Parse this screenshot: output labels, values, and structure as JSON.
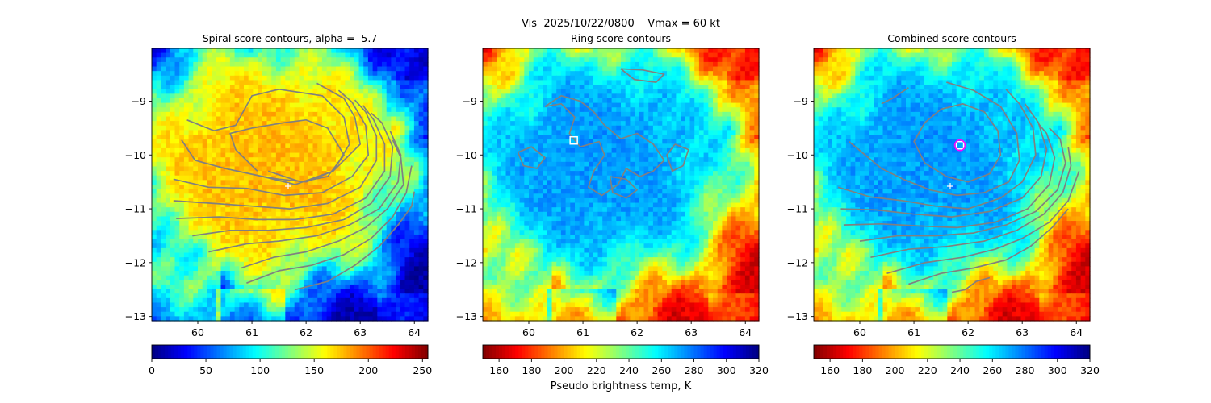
{
  "figure": {
    "suptitle": "Vis  2025/10/22/0800    Vmax = 60 kt",
    "colorbar_label": "Pseudo brightness temp, K"
  },
  "chart_data": [
    {
      "type": "heatmap",
      "title": "Spiral score contours, alpha =  5.7",
      "xlim": [
        59.15,
        64.25
      ],
      "ylim": [
        -13.08,
        -8.02
      ],
      "xticks": [
        60,
        61,
        62,
        63,
        64
      ],
      "yticks": [
        -9,
        -10,
        -11,
        -12,
        -13
      ],
      "grid": false,
      "colormap": "jet",
      "colorbar": {
        "ticks": [
          0,
          50,
          100,
          150,
          200,
          250
        ],
        "range": [
          0,
          255
        ],
        "reversed": false
      },
      "markers": [
        {
          "type": "plus",
          "x": 61.67,
          "y": -10.58,
          "color": "#ffffff"
        }
      ],
      "contours": [
        [
          [
            61.1,
            -10.3
          ],
          [
            60.7,
            -9.9
          ],
          [
            60.6,
            -9.6
          ],
          [
            61.0,
            -9.5
          ],
          [
            61.6,
            -9.4
          ],
          [
            62.0,
            -9.35
          ],
          [
            62.4,
            -9.5
          ],
          [
            62.7,
            -10.0
          ],
          [
            62.4,
            -10.4
          ],
          [
            61.9,
            -10.5
          ],
          [
            61.3,
            -10.3
          ]
        ],
        [
          [
            59.8,
            -9.35
          ],
          [
            60.3,
            -9.55
          ],
          [
            60.7,
            -9.45
          ],
          [
            61.0,
            -8.9
          ],
          [
            61.5,
            -8.78
          ],
          [
            62.3,
            -8.9
          ],
          [
            62.7,
            -9.3
          ],
          [
            62.8,
            -9.8
          ],
          [
            62.5,
            -10.3
          ],
          [
            62.0,
            -10.5
          ],
          [
            61.5,
            -10.45
          ],
          [
            61.2,
            -10.4
          ]
        ],
        [
          [
            59.7,
            -9.72
          ],
          [
            59.95,
            -10.1
          ],
          [
            60.5,
            -10.25
          ],
          [
            61.2,
            -10.4
          ],
          [
            61.8,
            -10.55
          ],
          [
            62.5,
            -10.3
          ],
          [
            63.0,
            -9.8
          ],
          [
            62.9,
            -9.3
          ],
          [
            62.7,
            -8.95
          ],
          [
            62.2,
            -8.67
          ]
        ],
        [
          [
            59.55,
            -10.45
          ],
          [
            60.2,
            -10.6
          ],
          [
            60.9,
            -10.62
          ],
          [
            61.6,
            -10.75
          ],
          [
            62.3,
            -10.7
          ],
          [
            62.85,
            -10.4
          ],
          [
            63.15,
            -10.0
          ],
          [
            63.1,
            -9.45
          ],
          [
            62.85,
            -9.02
          ],
          [
            62.6,
            -8.8
          ]
        ],
        [
          [
            59.55,
            -10.85
          ],
          [
            60.3,
            -10.9
          ],
          [
            61.0,
            -10.95
          ],
          [
            61.7,
            -11.0
          ],
          [
            62.4,
            -10.9
          ],
          [
            63.0,
            -10.6
          ],
          [
            63.3,
            -10.1
          ],
          [
            63.3,
            -9.65
          ],
          [
            63.1,
            -9.2
          ],
          [
            62.9,
            -8.98
          ]
        ],
        [
          [
            59.6,
            -11.18
          ],
          [
            60.4,
            -11.15
          ],
          [
            61.1,
            -11.2
          ],
          [
            61.8,
            -11.2
          ],
          [
            62.5,
            -11.1
          ],
          [
            63.1,
            -10.8
          ],
          [
            63.45,
            -10.3
          ],
          [
            63.45,
            -9.8
          ],
          [
            63.25,
            -9.35
          ],
          [
            63.05,
            -9.08
          ]
        ],
        [
          [
            59.9,
            -11.5
          ],
          [
            60.6,
            -11.4
          ],
          [
            61.3,
            -11.4
          ],
          [
            62.0,
            -11.35
          ],
          [
            62.7,
            -11.2
          ],
          [
            63.2,
            -10.9
          ],
          [
            63.55,
            -10.4
          ],
          [
            63.6,
            -9.85
          ],
          [
            63.4,
            -9.4
          ],
          [
            63.2,
            -9.22
          ]
        ],
        [
          [
            60.2,
            -11.8
          ],
          [
            60.9,
            -11.65
          ],
          [
            61.5,
            -11.6
          ],
          [
            62.2,
            -11.5
          ],
          [
            62.8,
            -11.3
          ],
          [
            63.35,
            -11.0
          ],
          [
            63.7,
            -10.5
          ],
          [
            63.75,
            -10.0
          ],
          [
            63.55,
            -9.55
          ]
        ],
        [
          [
            60.8,
            -12.1
          ],
          [
            61.4,
            -11.9
          ],
          [
            62.0,
            -11.8
          ],
          [
            62.6,
            -11.6
          ],
          [
            63.1,
            -11.35
          ],
          [
            63.5,
            -11.0
          ],
          [
            63.8,
            -10.55
          ],
          [
            63.75,
            -10.05
          ],
          [
            63.6,
            -9.72
          ]
        ],
        [
          [
            60.9,
            -12.38
          ],
          [
            61.5,
            -12.15
          ],
          [
            62.1,
            -12.05
          ],
          [
            62.7,
            -11.85
          ],
          [
            63.2,
            -11.55
          ],
          [
            63.6,
            -11.15
          ],
          [
            63.85,
            -10.7
          ],
          [
            63.95,
            -10.2
          ]
        ],
        [
          [
            61.8,
            -12.5
          ],
          [
            62.4,
            -12.35
          ],
          [
            62.9,
            -12.05
          ],
          [
            63.35,
            -11.7
          ],
          [
            63.7,
            -11.3
          ],
          [
            63.95,
            -10.95
          ],
          [
            64.0,
            -10.68
          ]
        ]
      ]
    },
    {
      "type": "heatmap",
      "title": "Ring score contours",
      "xlim": [
        59.15,
        64.25
      ],
      "ylim": [
        -13.08,
        -8.02
      ],
      "xticks": [
        60,
        61,
        62,
        63,
        64
      ],
      "yticks": [
        -9,
        -10,
        -11,
        -12,
        -13
      ],
      "grid": false,
      "colormap": "jet_r",
      "colorbar": {
        "ticks": [
          160,
          180,
          200,
          220,
          240,
          260,
          280,
          300,
          320
        ],
        "range": [
          150,
          320
        ],
        "reversed": true
      },
      "markers": [
        {
          "type": "square",
          "x": 60.83,
          "y": -9.73,
          "color": "#ffffff"
        }
      ],
      "contours": [
        [
          [
            60.3,
            -9.1
          ],
          [
            60.6,
            -9.05
          ],
          [
            60.85,
            -9.3
          ],
          [
            60.75,
            -9.6
          ],
          [
            60.95,
            -9.85
          ],
          [
            61.3,
            -9.75
          ],
          [
            61.4,
            -10.0
          ],
          [
            61.2,
            -10.3
          ],
          [
            61.1,
            -10.6
          ],
          [
            61.35,
            -10.75
          ],
          [
            61.65,
            -10.55
          ],
          [
            61.8,
            -10.25
          ],
          [
            62.05,
            -10.4
          ],
          [
            62.3,
            -10.3
          ],
          [
            62.5,
            -10.1
          ],
          [
            62.3,
            -9.8
          ],
          [
            62.0,
            -9.6
          ],
          [
            61.7,
            -9.7
          ],
          [
            61.4,
            -9.45
          ],
          [
            61.2,
            -9.2
          ],
          [
            60.95,
            -9.0
          ],
          [
            60.6,
            -8.9
          ],
          [
            60.3,
            -9.1
          ]
        ],
        [
          [
            59.8,
            -9.95
          ],
          [
            60.05,
            -9.85
          ],
          [
            60.3,
            -10.05
          ],
          [
            60.15,
            -10.25
          ],
          [
            59.9,
            -10.2
          ],
          [
            59.8,
            -9.95
          ]
        ],
        [
          [
            61.7,
            -8.4
          ],
          [
            62.1,
            -8.42
          ],
          [
            62.5,
            -8.5
          ],
          [
            62.35,
            -8.65
          ],
          [
            61.95,
            -8.6
          ],
          [
            61.7,
            -8.4
          ]
        ],
        [
          [
            62.7,
            -9.8
          ],
          [
            62.95,
            -9.9
          ],
          [
            62.85,
            -10.2
          ],
          [
            62.65,
            -10.3
          ],
          [
            62.55,
            -10.0
          ],
          [
            62.7,
            -9.8
          ]
        ],
        [
          [
            61.5,
            -10.4
          ],
          [
            61.8,
            -10.45
          ],
          [
            62.0,
            -10.65
          ],
          [
            61.8,
            -10.8
          ],
          [
            61.55,
            -10.7
          ],
          [
            61.5,
            -10.4
          ]
        ]
      ]
    },
    {
      "type": "heatmap",
      "title": "Combined score contours",
      "xlim": [
        59.15,
        64.25
      ],
      "ylim": [
        -13.08,
        -8.02
      ],
      "xticks": [
        60,
        61,
        62,
        63,
        64
      ],
      "yticks": [
        -9,
        -10,
        -11,
        -12,
        -13
      ],
      "grid": false,
      "colormap": "jet_r",
      "colorbar": {
        "ticks": [
          160,
          180,
          200,
          220,
          240,
          260,
          280,
          300,
          320
        ],
        "range": [
          150,
          320
        ],
        "reversed": true
      },
      "markers": [
        {
          "type": "plus",
          "x": 61.67,
          "y": -10.58,
          "color": "#ffffff"
        },
        {
          "type": "square",
          "x": 61.85,
          "y": -9.82,
          "color": "#ffffff"
        },
        {
          "type": "ring",
          "x": 61.85,
          "y": -9.82,
          "color": "#ff00ff"
        }
      ],
      "contours": [
        [
          [
            61.2,
            -9.4
          ],
          [
            61.5,
            -9.15
          ],
          [
            61.9,
            -9.05
          ],
          [
            62.3,
            -9.2
          ],
          [
            62.55,
            -9.55
          ],
          [
            62.6,
            -10.0
          ],
          [
            62.4,
            -10.35
          ],
          [
            62.0,
            -10.5
          ],
          [
            61.6,
            -10.4
          ],
          [
            61.2,
            -10.15
          ],
          [
            61.0,
            -9.75
          ],
          [
            61.2,
            -9.4
          ]
        ],
        [
          [
            60.4,
            -9.05
          ],
          [
            60.6,
            -8.95
          ],
          [
            60.9,
            -8.75
          ]
        ],
        [
          [
            61.6,
            -8.65
          ],
          [
            62.1,
            -8.8
          ],
          [
            62.6,
            -9.1
          ],
          [
            62.9,
            -9.6
          ],
          [
            62.95,
            -10.1
          ],
          [
            62.75,
            -10.5
          ],
          [
            62.3,
            -10.7
          ],
          [
            61.8,
            -10.75
          ],
          [
            61.3,
            -10.65
          ],
          [
            60.8,
            -10.45
          ],
          [
            60.4,
            -10.25
          ],
          [
            60.1,
            -10.0
          ],
          [
            59.8,
            -9.75
          ]
        ],
        [
          [
            59.6,
            -10.6
          ],
          [
            60.2,
            -10.78
          ],
          [
            60.8,
            -10.85
          ],
          [
            61.4,
            -10.95
          ],
          [
            62.0,
            -11.0
          ],
          [
            62.6,
            -10.8
          ],
          [
            63.0,
            -10.5
          ],
          [
            63.25,
            -10.0
          ],
          [
            63.2,
            -9.5
          ],
          [
            62.95,
            -9.05
          ],
          [
            62.7,
            -8.78
          ]
        ],
        [
          [
            59.65,
            -11.0
          ],
          [
            60.3,
            -11.02
          ],
          [
            61.0,
            -11.1
          ],
          [
            61.7,
            -11.15
          ],
          [
            62.4,
            -11.05
          ],
          [
            63.0,
            -10.8
          ],
          [
            63.35,
            -10.4
          ],
          [
            63.45,
            -9.9
          ],
          [
            63.3,
            -9.4
          ],
          [
            63.05,
            -9.05
          ]
        ],
        [
          [
            59.7,
            -11.3
          ],
          [
            60.4,
            -11.28
          ],
          [
            61.1,
            -11.32
          ],
          [
            61.8,
            -11.35
          ],
          [
            62.5,
            -11.25
          ],
          [
            63.1,
            -11.0
          ],
          [
            63.5,
            -10.55
          ],
          [
            63.6,
            -10.05
          ],
          [
            63.45,
            -9.6
          ],
          [
            63.3,
            -9.42
          ]
        ],
        [
          [
            60.0,
            -11.6
          ],
          [
            60.7,
            -11.5
          ],
          [
            61.4,
            -11.5
          ],
          [
            62.1,
            -11.45
          ],
          [
            62.7,
            -11.3
          ],
          [
            63.25,
            -11.05
          ],
          [
            63.65,
            -10.65
          ],
          [
            63.8,
            -10.15
          ],
          [
            63.7,
            -9.7
          ],
          [
            63.5,
            -9.5
          ]
        ],
        [
          [
            60.2,
            -11.9
          ],
          [
            60.9,
            -11.75
          ],
          [
            61.6,
            -11.7
          ],
          [
            62.3,
            -11.6
          ],
          [
            62.9,
            -11.4
          ],
          [
            63.4,
            -11.1
          ],
          [
            63.75,
            -10.7
          ],
          [
            63.9,
            -10.2
          ],
          [
            63.85,
            -9.85
          ]
        ],
        [
          [
            60.5,
            -12.2
          ],
          [
            61.2,
            -12.0
          ],
          [
            61.9,
            -11.9
          ],
          [
            62.5,
            -11.75
          ],
          [
            63.0,
            -11.55
          ],
          [
            63.5,
            -11.25
          ],
          [
            63.85,
            -10.85
          ],
          [
            64.05,
            -10.3
          ]
        ],
        [
          [
            60.9,
            -12.4
          ],
          [
            61.5,
            -12.2
          ],
          [
            62.1,
            -12.1
          ],
          [
            62.7,
            -11.95
          ],
          [
            63.15,
            -11.7
          ],
          [
            63.55,
            -11.35
          ],
          [
            63.85,
            -11.0
          ]
        ],
        [
          [
            61.7,
            -12.55
          ],
          [
            61.95,
            -12.5
          ],
          [
            62.15,
            -12.35
          ],
          [
            62.4,
            -12.28
          ]
        ]
      ]
    }
  ]
}
